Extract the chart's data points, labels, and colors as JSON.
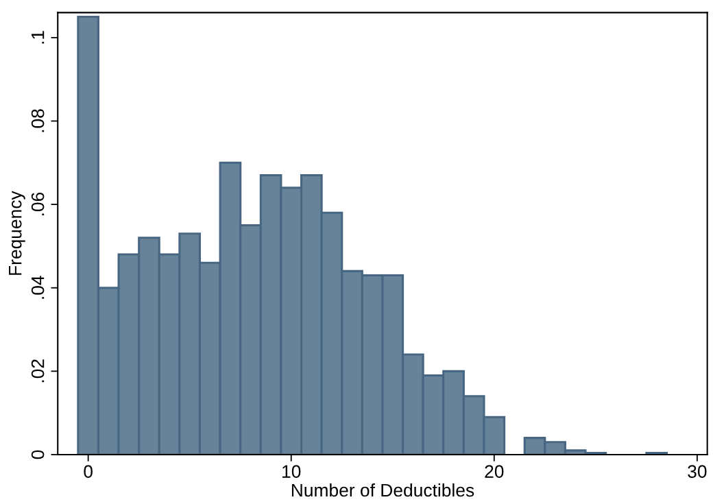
{
  "chart_data": {
    "type": "histogram",
    "xlabel": "Number of Deductibles",
    "ylabel": "Frequency",
    "bins": [
      -0.5,
      0.5,
      1.5,
      2.5,
      3.5,
      4.5,
      5.5,
      6.5,
      7.5,
      8.5,
      9.5,
      10.5,
      11.5,
      12.5,
      13.5,
      14.5,
      15.5,
      16.5,
      17.5,
      18.5,
      19.5,
      20.5,
      21.5,
      22.5,
      23.5,
      24.5,
      25.5,
      26.5,
      27.5,
      28.5
    ],
    "values": [
      0.105,
      0.04,
      0.048,
      0.052,
      0.048,
      0.053,
      0.046,
      0.07,
      0.055,
      0.067,
      0.064,
      0.067,
      0.058,
      0.044,
      0.043,
      0.043,
      0.024,
      0.019,
      0.02,
      0.014,
      0.009,
      0,
      0.004,
      0.003,
      0.001,
      0.0004,
      0,
      0,
      0.0004
    ],
    "color": "#66839a",
    "xlim": [
      -1.5,
      30.5
    ],
    "xticks": [
      0,
      10,
      20,
      30
    ],
    "ylim": [
      0,
      0.106
    ],
    "yticks": [
      0,
      {
        "value": 0.02,
        "label": ".02"
      },
      {
        "value": 0.04,
        "label": ".04"
      },
      {
        "value": 0.06,
        "label": ".06"
      },
      {
        "value": 0.08,
        "label": ".08"
      },
      {
        "value": 0.1,
        "label": ".1"
      }
    ],
    "grid": false
  }
}
